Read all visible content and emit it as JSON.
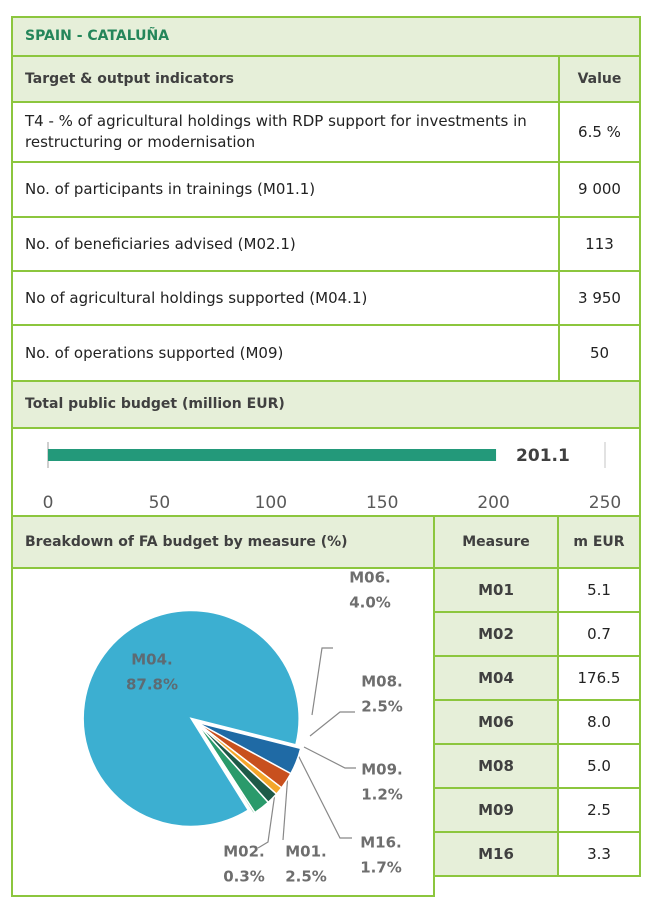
{
  "title": "SPAIN - CATALUÑA",
  "indicators": {
    "header": [
      "Target & output indicators",
      "Value"
    ],
    "rows": [
      [
        "T4 - % of agricultural holdings with RDP support for investments in restructuring or modernisation",
        "6.5 %"
      ],
      [
        "No. of participants in trainings (M01.1)",
        "9 000"
      ],
      [
        "No. of beneficiaries advised (M02.1)",
        "113"
      ],
      [
        "No of agricultural holdings supported (M04.1)",
        "3 950"
      ],
      [
        "No. of operations supported (M09)",
        "50"
      ]
    ]
  },
  "budget": {
    "title": "Total public budget (million EUR)",
    "value": 201.1,
    "color": "#23997a",
    "xlim": [
      0,
      250
    ],
    "xticks": [
      0,
      50,
      100,
      150,
      200,
      250
    ]
  },
  "breakdown": {
    "title": "Breakdown of FA budget by measure (%)",
    "slices": [
      {
        "name": "M01.",
        "value": 2.5,
        "value_label": "2.5%",
        "color": "#2a9a6b"
      },
      {
        "name": "M02.",
        "value": 0.3,
        "value_label": "0.3%",
        "color": "#86c9a8"
      },
      {
        "name": "M04.",
        "value": 87.8,
        "value_label": "87.8%",
        "color": "#3cafd1"
      },
      {
        "name": "M06.",
        "value": 4.0,
        "value_label": "4.0%",
        "color": "#1f6aa5"
      },
      {
        "name": "M08.",
        "value": 2.5,
        "value_label": "2.5%",
        "color": "#c8501e"
      },
      {
        "name": "M09.",
        "value": 1.2,
        "value_label": "1.2%",
        "color": "#f4a62a"
      },
      {
        "name": "M16.",
        "value": 1.7,
        "value_label": "1.7%",
        "color": "#1e5a48"
      }
    ],
    "table": {
      "header": [
        "Measure",
        "m EUR"
      ],
      "rows": [
        [
          "M01",
          "5.1"
        ],
        [
          "M02",
          "0.7"
        ],
        [
          "M04",
          "176.5"
        ],
        [
          "M06",
          "8.0"
        ],
        [
          "M08",
          "5.0"
        ],
        [
          "M09",
          "2.5"
        ],
        [
          "M16",
          "3.3"
        ]
      ]
    }
  }
}
